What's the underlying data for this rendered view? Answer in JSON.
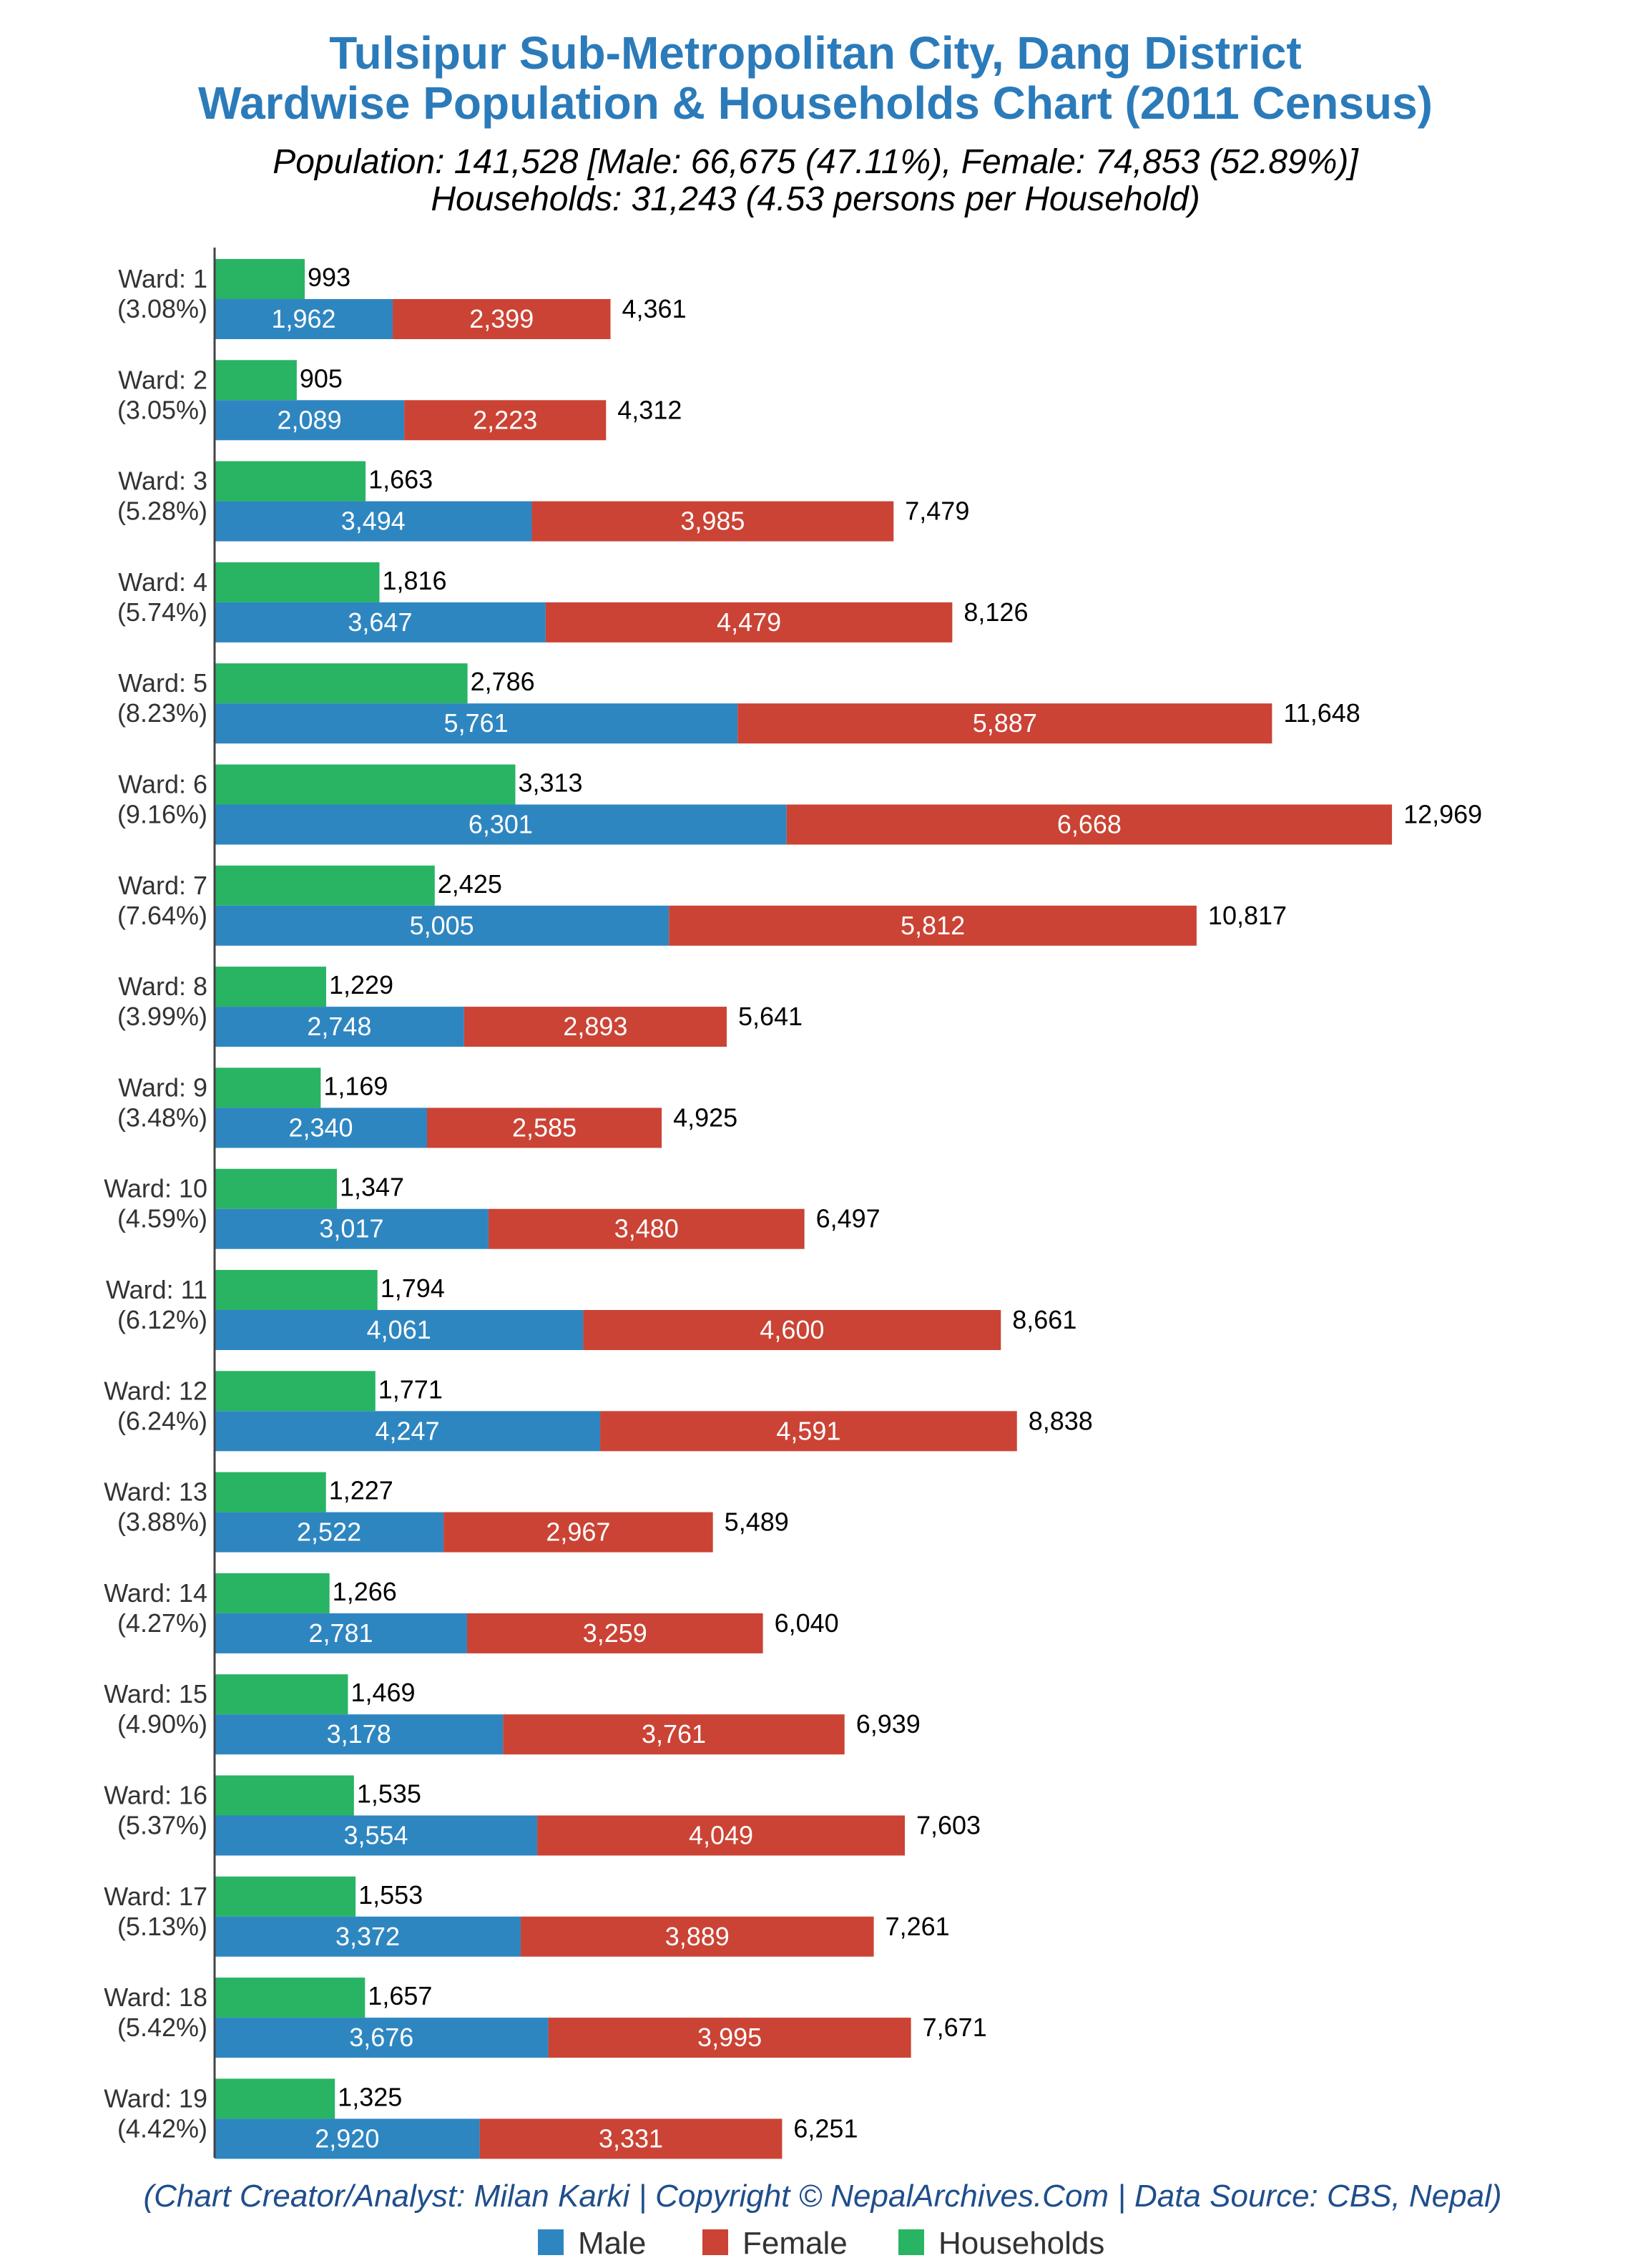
{
  "chart_data": {
    "type": "bar",
    "title_line1": "Tulsipur Sub-Metropolitan City, Dang District",
    "title_line2": "Wardwise Population & Households Chart (2011 Census)",
    "subtitle_line1": "Population: 141,528 [Male: 66,675 (47.11%), Female: 74,853 (52.89%)]",
    "subtitle_line2": "Households: 31,243 (4.53 persons per Household)",
    "credit": "(Chart Creator/Analyst: Milan Karki | Copyright © NepalArchives.Com | Data Source: CBS, Nepal)",
    "orientation": "horizontal",
    "stacked_series": [
      "Male",
      "Female"
    ],
    "legend_position": "bottom",
    "categories": [
      "Ward: 1",
      "Ward: 2",
      "Ward: 3",
      "Ward: 4",
      "Ward: 5",
      "Ward: 6",
      "Ward: 7",
      "Ward: 8",
      "Ward: 9",
      "Ward: 10",
      "Ward: 11",
      "Ward: 12",
      "Ward: 13",
      "Ward: 14",
      "Ward: 15",
      "Ward: 16",
      "Ward: 17",
      "Ward: 18",
      "Ward: 19"
    ],
    "category_shares": [
      "(3.08%)",
      "(3.05%)",
      "(5.28%)",
      "(5.74%)",
      "(8.23%)",
      "(9.16%)",
      "(7.64%)",
      "(3.99%)",
      "(3.48%)",
      "(4.59%)",
      "(6.12%)",
      "(6.24%)",
      "(3.88%)",
      "(4.27%)",
      "(4.90%)",
      "(5.37%)",
      "(5.13%)",
      "(5.42%)",
      "(4.42%)"
    ],
    "series": [
      {
        "name": "Male",
        "color": "#2e86c1",
        "values": [
          1962,
          2089,
          3494,
          3647,
          5761,
          6301,
          5005,
          2748,
          2340,
          3017,
          4061,
          4247,
          2522,
          2781,
          3178,
          3554,
          3372,
          3676,
          2920
        ]
      },
      {
        "name": "Female",
        "color": "#cb4335",
        "values": [
          2399,
          2223,
          3985,
          4479,
          5887,
          6668,
          5812,
          2893,
          2585,
          3480,
          4600,
          4591,
          2967,
          3259,
          3761,
          4049,
          3889,
          3995,
          3331
        ]
      },
      {
        "name": "Households",
        "color": "#28b463",
        "values": [
          993,
          905,
          1663,
          1816,
          2786,
          3313,
          2425,
          1229,
          1169,
          1347,
          1794,
          1771,
          1227,
          1266,
          1469,
          1535,
          1553,
          1657,
          1325
        ]
      }
    ],
    "totals": [
      4361,
      4312,
      7479,
      8126,
      11648,
      12969,
      10817,
      5641,
      4925,
      6497,
      8661,
      8838,
      5489,
      6040,
      6939,
      7603,
      7261,
      7671,
      6251
    ],
    "xlim": [
      0,
      13000
    ],
    "grid": false
  }
}
